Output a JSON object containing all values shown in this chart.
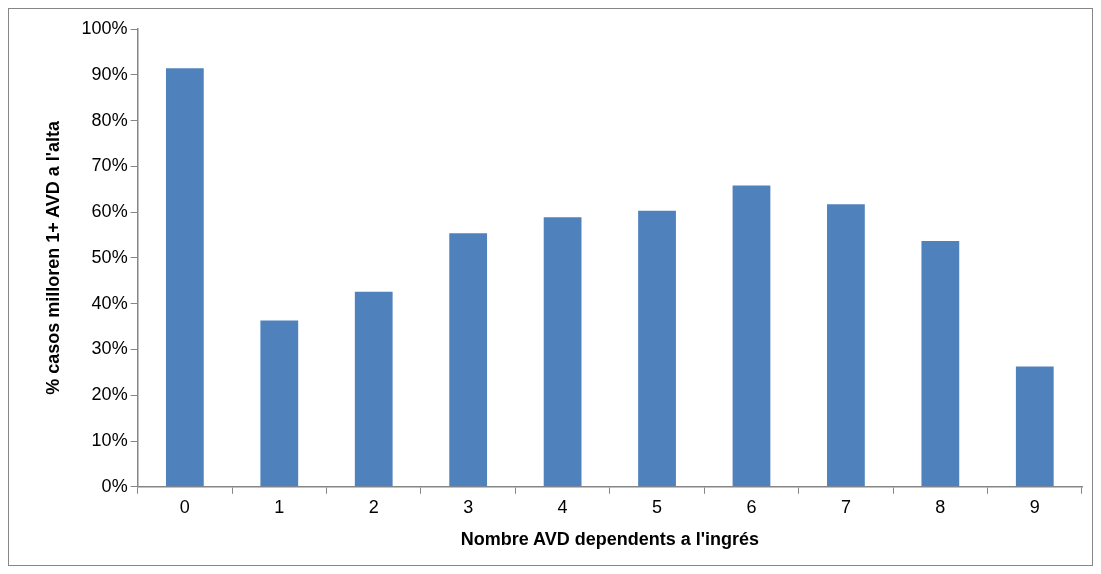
{
  "chart_data": {
    "type": "bar",
    "xlabel": "Nombre AVD dependents a l'ingrés",
    "ylabel": "% casos milloren 1+ AVD a l'alta",
    "categories": [
      "0",
      "1",
      "2",
      "3",
      "4",
      "5",
      "6",
      "7",
      "8",
      "9"
    ],
    "values": [
      91.4,
      36.3,
      42.6,
      55.4,
      58.9,
      60.3,
      65.8,
      61.7,
      53.7,
      26.3
    ],
    "color": "#4f81bd",
    "ylim": [
      0,
      100
    ],
    "yticks": [
      {
        "value": 0,
        "label": "0%"
      },
      {
        "value": 10,
        "label": "10%"
      },
      {
        "value": 20,
        "label": "20%"
      },
      {
        "value": 30,
        "label": "30%"
      },
      {
        "value": 40,
        "label": "40%"
      },
      {
        "value": 50,
        "label": "50%"
      },
      {
        "value": 60,
        "label": "60%"
      },
      {
        "value": 70,
        "label": "70%"
      },
      {
        "value": 80,
        "label": "80%"
      },
      {
        "value": 90,
        "label": "90%"
      },
      {
        "value": 100,
        "label": "100%"
      }
    ],
    "grid": false,
    "legend": false
  }
}
